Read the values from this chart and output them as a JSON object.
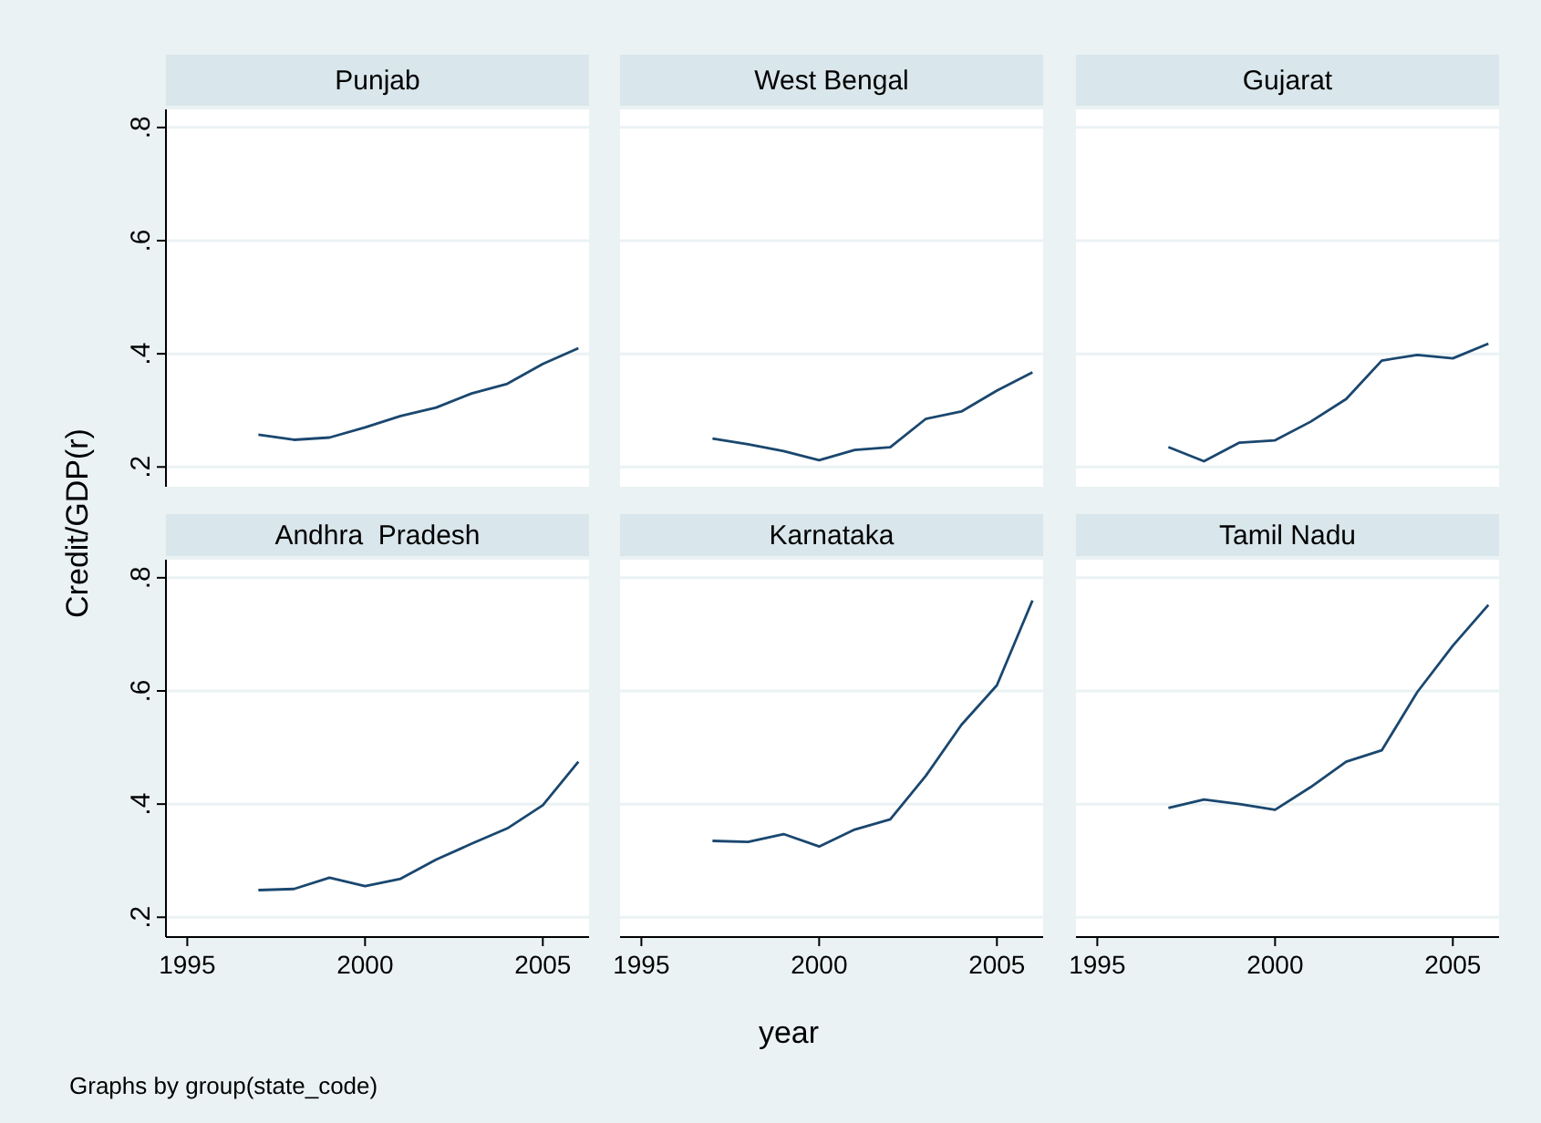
{
  "chart_data": [
    {
      "type": "line",
      "title": "Punjab",
      "x": [
        1997,
        1998,
        1999,
        2000,
        2001,
        2002,
        2003,
        2004,
        2005,
        2006
      ],
      "series": [
        {
          "color": "#1a476f",
          "values": [
            0.257,
            0.248,
            0.252,
            0.27,
            0.29,
            0.305,
            0.33,
            0.347,
            0.382,
            0.41
          ]
        }
      ],
      "xlim": [
        1994.4,
        2006.3
      ],
      "ylim": [
        0.165,
        0.832
      ],
      "yticks": [
        {
          "value": 0.2,
          "label": ".2"
        },
        {
          "value": 0.4,
          "label": ".4"
        },
        {
          "value": 0.6,
          "label": ".6"
        },
        {
          "value": 0.8,
          "label": ".8"
        }
      ],
      "grid": "y",
      "tick_labels": "y"
    },
    {
      "type": "line",
      "title": "West Bengal",
      "x": [
        1997,
        1998,
        1999,
        2000,
        2001,
        2002,
        2003,
        2004,
        2005,
        2006
      ],
      "series": [
        {
          "color": "#1a476f",
          "values": [
            0.25,
            0.24,
            0.228,
            0.212,
            0.23,
            0.235,
            0.285,
            0.298,
            0.335,
            0.367
          ]
        }
      ],
      "xlim": [
        1994.4,
        2006.3
      ],
      "ylim": [
        0.165,
        0.832
      ],
      "yticks": [
        {
          "value": 0.2,
          "label": null
        },
        {
          "value": 0.4,
          "label": null
        },
        {
          "value": 0.6,
          "label": null
        },
        {
          "value": 0.8,
          "label": null
        }
      ],
      "grid": "y",
      "tick_labels": false
    },
    {
      "type": "line",
      "title": "Gujarat",
      "x": [
        1997,
        1998,
        1999,
        2000,
        2001,
        2002,
        2003,
        2004,
        2005,
        2006
      ],
      "series": [
        {
          "color": "#1a476f",
          "values": [
            0.235,
            0.21,
            0.243,
            0.247,
            0.28,
            0.32,
            0.388,
            0.398,
            0.392,
            0.418
          ]
        }
      ],
      "xlim": [
        1994.4,
        2006.3
      ],
      "ylim": [
        0.165,
        0.832
      ],
      "yticks": [
        {
          "value": 0.2,
          "label": null
        },
        {
          "value": 0.4,
          "label": null
        },
        {
          "value": 0.6,
          "label": null
        },
        {
          "value": 0.8,
          "label": null
        }
      ],
      "grid": "y",
      "tick_labels": false
    },
    {
      "type": "line",
      "title": "Andhra  Pradesh",
      "ylabel": "Credit/GDP(r)",
      "annotations": [
        "Graphs by group(state_code)"
      ],
      "x": [
        1997,
        1998,
        1999,
        2000,
        2001,
        2002,
        2003,
        2004,
        2005,
        2006
      ],
      "series": [
        {
          "color": "#1a476f",
          "values": [
            0.248,
            0.25,
            0.27,
            0.255,
            0.268,
            0.302,
            0.33,
            0.357,
            0.398,
            0.475
          ]
        }
      ],
      "xlim": [
        1994.4,
        2006.3
      ],
      "xticks": [
        1995,
        2000,
        2005
      ],
      "ylim": [
        0.165,
        0.832
      ],
      "yticks": [
        {
          "value": 0.2,
          "label": ".2"
        },
        {
          "value": 0.4,
          "label": ".4"
        },
        {
          "value": 0.6,
          "label": ".6"
        },
        {
          "value": 0.8,
          "label": ".8"
        }
      ],
      "grid": "y"
    },
    {
      "type": "line",
      "title": "Karnataka",
      "xlabel": "year",
      "x": [
        1997,
        1998,
        1999,
        2000,
        2001,
        2002,
        2003,
        2004,
        2005,
        2006
      ],
      "series": [
        {
          "color": "#1a476f",
          "values": [
            0.335,
            0.333,
            0.347,
            0.325,
            0.355,
            0.373,
            0.45,
            0.54,
            0.61,
            0.76
          ]
        }
      ],
      "xlim": [
        1994.4,
        2006.3
      ],
      "xticks": [
        1995,
        2000,
        2005
      ],
      "ylim": [
        0.165,
        0.832
      ],
      "yticks": [
        {
          "value": 0.2,
          "label": null
        },
        {
          "value": 0.4,
          "label": null
        },
        {
          "value": 0.6,
          "label": null
        },
        {
          "value": 0.8,
          "label": null
        }
      ],
      "grid": "y",
      "tick_labels": "x"
    },
    {
      "type": "line",
      "title": "Tamil Nadu",
      "x": [
        1997,
        1998,
        1999,
        2000,
        2001,
        2002,
        2003,
        2004,
        2005,
        2006
      ],
      "series": [
        {
          "color": "#1a476f",
          "values": [
            0.393,
            0.408,
            0.4,
            0.39,
            0.43,
            0.475,
            0.495,
            0.598,
            0.68,
            0.752
          ]
        }
      ],
      "xlim": [
        1994.4,
        2006.3
      ],
      "xticks": [
        1995,
        2000,
        2005
      ],
      "ylim": [
        0.165,
        0.832
      ],
      "yticks": [
        {
          "value": 0.2,
          "label": null
        },
        {
          "value": 0.4,
          "label": null
        },
        {
          "value": 0.6,
          "label": null
        },
        {
          "value": 0.8,
          "label": null
        }
      ],
      "grid": "y",
      "tick_labels": "x"
    }
  ]
}
